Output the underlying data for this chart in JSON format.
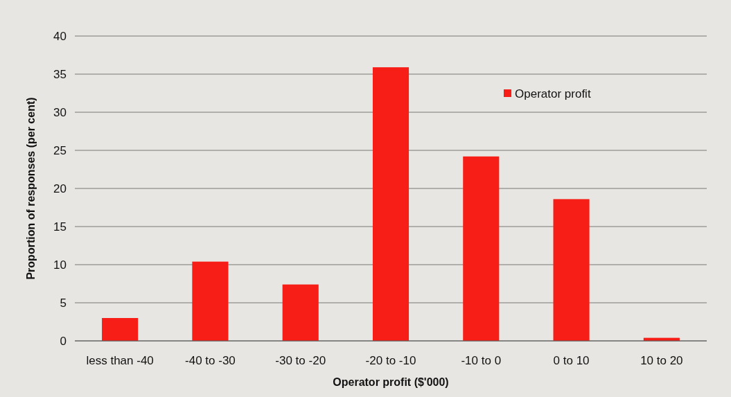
{
  "chart_data": {
    "type": "bar",
    "xlabel": "Operator profit ($'000)",
    "ylabel": "Proportion of responses (per cent)",
    "categories": [
      "less than -40",
      "-40 to -30",
      "-30 to -20",
      "-20 to -10",
      "-10 to 0",
      "0 to 10",
      "10 to 20"
    ],
    "series": [
      {
        "name": "Operator profit",
        "color": "#f61e16",
        "values": [
          3.0,
          10.4,
          7.4,
          35.9,
          24.2,
          18.6,
          0.4
        ]
      }
    ],
    "ylim": [
      0,
      40
    ],
    "yticks": [
      0,
      5,
      10,
      15,
      20,
      25,
      30,
      35,
      40
    ],
    "grid": "y",
    "legend": "top right"
  }
}
